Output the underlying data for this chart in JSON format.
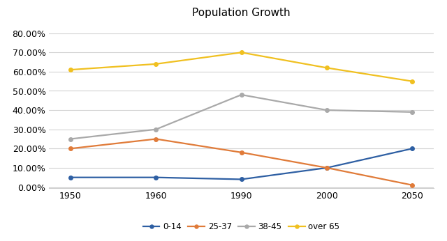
{
  "title": "Population Growth",
  "x_labels": [
    1950,
    1960,
    1990,
    2000,
    2050
  ],
  "series": {
    "0-14": {
      "values": [
        0.05,
        0.05,
        0.04,
        0.1,
        0.2
      ],
      "color": "#2e5fa3",
      "marker": "o"
    },
    "25-37": {
      "values": [
        0.2,
        0.25,
        0.18,
        0.1,
        0.01
      ],
      "color": "#e07b39",
      "marker": "o"
    },
    "38-45": {
      "values": [
        0.25,
        0.3,
        0.48,
        0.4,
        0.39
      ],
      "color": "#a9a9a9",
      "marker": "o"
    },
    "over 65": {
      "values": [
        0.61,
        0.64,
        0.7,
        0.62,
        0.55
      ],
      "color": "#f0c020",
      "marker": "o"
    }
  },
  "ylim": [
    -0.005,
    0.86
  ],
  "yticks": [
    0.0,
    0.1,
    0.2,
    0.3,
    0.4,
    0.5,
    0.6,
    0.7,
    0.8
  ],
  "background_color": "#ffffff",
  "grid_color": "#d3d3d3",
  "legend_labels": [
    "0-14",
    "25-37",
    "38-45",
    "over 65"
  ],
  "title_fontsize": 11,
  "tick_fontsize": 9,
  "legend_fontsize": 8.5
}
